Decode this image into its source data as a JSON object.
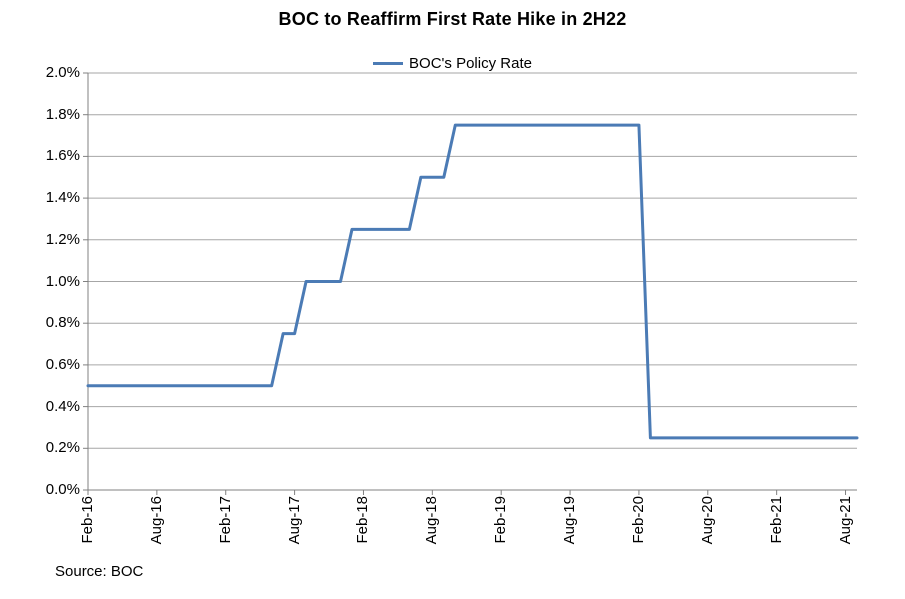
{
  "title": "BOC to Reaffirm First Rate Hike in 2H22",
  "source_note": "Source: BOC",
  "colors": {
    "line": "#4B7BB5",
    "grid": "#A6A6A6",
    "axis": "#808080",
    "text": "#000000"
  },
  "chart_data": {
    "type": "line",
    "title": "BOC to Reaffirm First Rate Hike in 2H22",
    "legend_position": "top-center",
    "grid": "horizontal",
    "ylabel": "",
    "xlabel": "",
    "ylim": [
      0.0,
      2.0
    ],
    "y_tick_labels": [
      "0.0%",
      "0.2%",
      "0.4%",
      "0.6%",
      "0.8%",
      "1.0%",
      "1.2%",
      "1.4%",
      "1.6%",
      "1.8%",
      "2.0%"
    ],
    "x_tick_every": 6,
    "x_tick_labels": [
      "Feb-16",
      "Aug-16",
      "Feb-17",
      "Aug-17",
      "Feb-18",
      "Aug-18",
      "Feb-19",
      "Aug-19",
      "Feb-20",
      "Aug-20",
      "Feb-21",
      "Aug-21"
    ],
    "x": [
      "Feb-16",
      "Mar-16",
      "Apr-16",
      "May-16",
      "Jun-16",
      "Jul-16",
      "Aug-16",
      "Sep-16",
      "Oct-16",
      "Nov-16",
      "Dec-16",
      "Jan-17",
      "Feb-17",
      "Mar-17",
      "Apr-17",
      "May-17",
      "Jun-17",
      "Jul-17",
      "Aug-17",
      "Sep-17",
      "Oct-17",
      "Nov-17",
      "Dec-17",
      "Jan-18",
      "Feb-18",
      "Mar-18",
      "Apr-18",
      "May-18",
      "Jun-18",
      "Jul-18",
      "Aug-18",
      "Sep-18",
      "Oct-18",
      "Nov-18",
      "Dec-18",
      "Jan-19",
      "Feb-19",
      "Mar-19",
      "Apr-19",
      "May-19",
      "Jun-19",
      "Jul-19",
      "Aug-19",
      "Sep-19",
      "Oct-19",
      "Nov-19",
      "Dec-19",
      "Jan-20",
      "Feb-20",
      "Mar-20",
      "Apr-20",
      "May-20",
      "Jun-20",
      "Jul-20",
      "Aug-20",
      "Sep-20",
      "Oct-20",
      "Nov-20",
      "Dec-20",
      "Jan-21",
      "Feb-21",
      "Mar-21",
      "Apr-21",
      "May-21",
      "Jun-21",
      "Jul-21",
      "Aug-21",
      "Sep-21"
    ],
    "series": [
      {
        "name": "BOC's Policy Rate",
        "unit": "%",
        "values": [
          0.5,
          0.5,
          0.5,
          0.5,
          0.5,
          0.5,
          0.5,
          0.5,
          0.5,
          0.5,
          0.5,
          0.5,
          0.5,
          0.5,
          0.5,
          0.5,
          0.5,
          0.75,
          0.75,
          1.0,
          1.0,
          1.0,
          1.0,
          1.25,
          1.25,
          1.25,
          1.25,
          1.25,
          1.25,
          1.5,
          1.5,
          1.5,
          1.75,
          1.75,
          1.75,
          1.75,
          1.75,
          1.75,
          1.75,
          1.75,
          1.75,
          1.75,
          1.75,
          1.75,
          1.75,
          1.75,
          1.75,
          1.75,
          1.75,
          0.25,
          0.25,
          0.25,
          0.25,
          0.25,
          0.25,
          0.25,
          0.25,
          0.25,
          0.25,
          0.25,
          0.25,
          0.25,
          0.25,
          0.25,
          0.25,
          0.25,
          0.25,
          0.25
        ]
      }
    ]
  }
}
